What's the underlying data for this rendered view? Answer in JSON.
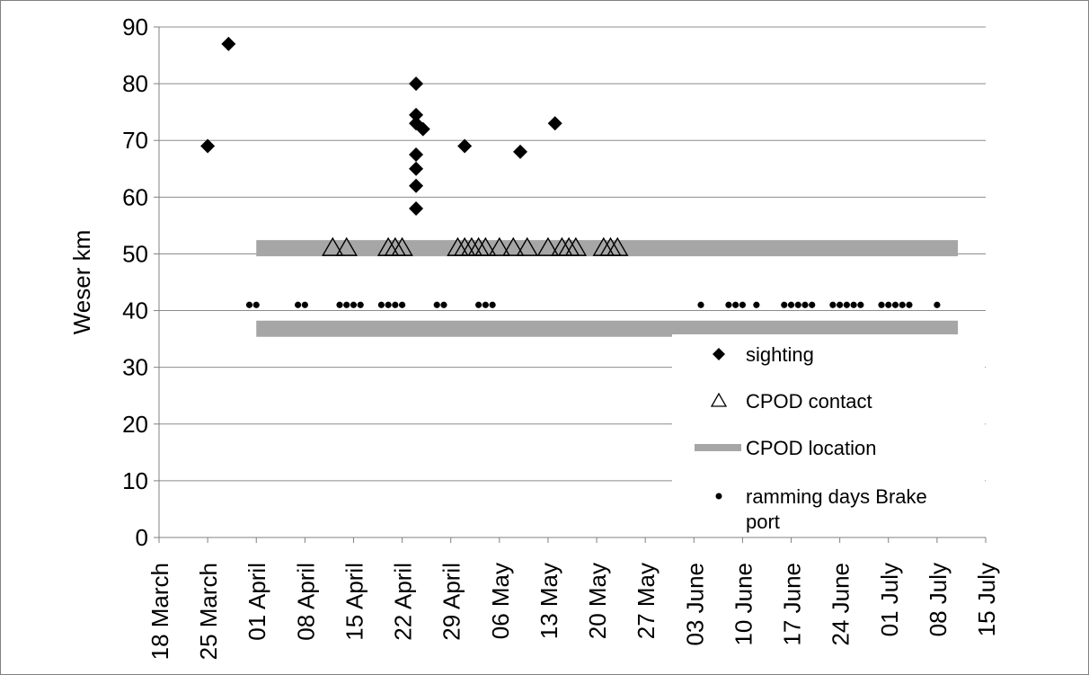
{
  "chart_data": {
    "type": "scatter",
    "title": "",
    "xlabel": "",
    "ylabel": "Weser km",
    "ylim": [
      0,
      90
    ],
    "yticks": [
      0,
      10,
      20,
      30,
      40,
      50,
      60,
      70,
      80,
      90
    ],
    "xlim": [
      "2012-03-18",
      "2012-07-15"
    ],
    "xticks": [
      {
        "date": "2012-03-18",
        "label": "18 March"
      },
      {
        "date": "2012-03-25",
        "label": "25 March"
      },
      {
        "date": "2012-04-01",
        "label": "01 April"
      },
      {
        "date": "2012-04-08",
        "label": "08 April"
      },
      {
        "date": "2012-04-15",
        "label": "15 April"
      },
      {
        "date": "2012-04-22",
        "label": "22 April"
      },
      {
        "date": "2012-04-29",
        "label": "29 April"
      },
      {
        "date": "2012-05-06",
        "label": "06 May"
      },
      {
        "date": "2012-05-13",
        "label": "13 May"
      },
      {
        "date": "2012-05-20",
        "label": "20 May"
      },
      {
        "date": "2012-05-27",
        "label": "27 May"
      },
      {
        "date": "2012-06-03",
        "label": "03 June"
      },
      {
        "date": "2012-06-10",
        "label": "10 June"
      },
      {
        "date": "2012-06-17",
        "label": "17 June"
      },
      {
        "date": "2012-06-24",
        "label": "24 June"
      },
      {
        "date": "2012-07-01",
        "label": "01 July"
      },
      {
        "date": "2012-07-08",
        "label": "08 July"
      },
      {
        "date": "2012-07-15",
        "label": "15 July"
      }
    ],
    "grid": "horizontal",
    "legend_position": "bottom-right",
    "series": [
      {
        "name": "sighting",
        "marker": "diamond",
        "color": "#000000",
        "points": [
          {
            "x": "2012-03-25",
            "y": 69
          },
          {
            "x": "2012-03-28",
            "y": 87
          },
          {
            "x": "2012-04-24",
            "y": 80
          },
          {
            "x": "2012-04-24",
            "y": 74.5
          },
          {
            "x": "2012-04-24",
            "y": 73
          },
          {
            "x": "2012-04-25",
            "y": 72
          },
          {
            "x": "2012-04-24",
            "y": 67.5
          },
          {
            "x": "2012-04-24",
            "y": 65
          },
          {
            "x": "2012-04-24",
            "y": 62
          },
          {
            "x": "2012-04-24",
            "y": 58
          },
          {
            "x": "2012-05-01",
            "y": 69
          },
          {
            "x": "2012-05-09",
            "y": 68
          },
          {
            "x": "2012-05-14",
            "y": 73
          }
        ]
      },
      {
        "name": "CPOD contact",
        "marker": "triangle-open",
        "color": "#000000",
        "y": 51,
        "dates": [
          "2012-04-12",
          "2012-04-14",
          "2012-04-20",
          "2012-04-21",
          "2012-04-22",
          "2012-04-30",
          "2012-05-01",
          "2012-05-02",
          "2012-05-03",
          "2012-05-04",
          "2012-05-06",
          "2012-05-08",
          "2012-05-10",
          "2012-05-13",
          "2012-05-15",
          "2012-05-16",
          "2012-05-17",
          "2012-05-21",
          "2012-05-22",
          "2012-05-23"
        ]
      },
      {
        "name": "CPOD location",
        "marker": "band",
        "color": "#a6a6a6",
        "bands": [
          {
            "y": 51,
            "start": "2012-04-01",
            "end": "2012-07-11"
          },
          {
            "y": 36.8,
            "start": "2012-04-01",
            "end": "2012-07-11"
          }
        ]
      },
      {
        "name": "ramming days Brake port",
        "marker": "dot",
        "color": "#000000",
        "y": 41,
        "dates": [
          "2012-03-31",
          "2012-04-01",
          "2012-04-07",
          "2012-04-08",
          "2012-04-13",
          "2012-04-14",
          "2012-04-15",
          "2012-04-16",
          "2012-04-19",
          "2012-04-20",
          "2012-04-21",
          "2012-04-22",
          "2012-04-27",
          "2012-04-28",
          "2012-05-03",
          "2012-05-04",
          "2012-05-05",
          "2012-06-04",
          "2012-06-08",
          "2012-06-09",
          "2012-06-10",
          "2012-06-12",
          "2012-06-16",
          "2012-06-17",
          "2012-06-18",
          "2012-06-19",
          "2012-06-20",
          "2012-06-23",
          "2012-06-24",
          "2012-06-25",
          "2012-06-26",
          "2012-06-27",
          "2012-06-30",
          "2012-07-01",
          "2012-07-02",
          "2012-07-03",
          "2012-07-04",
          "2012-07-08"
        ]
      }
    ]
  }
}
